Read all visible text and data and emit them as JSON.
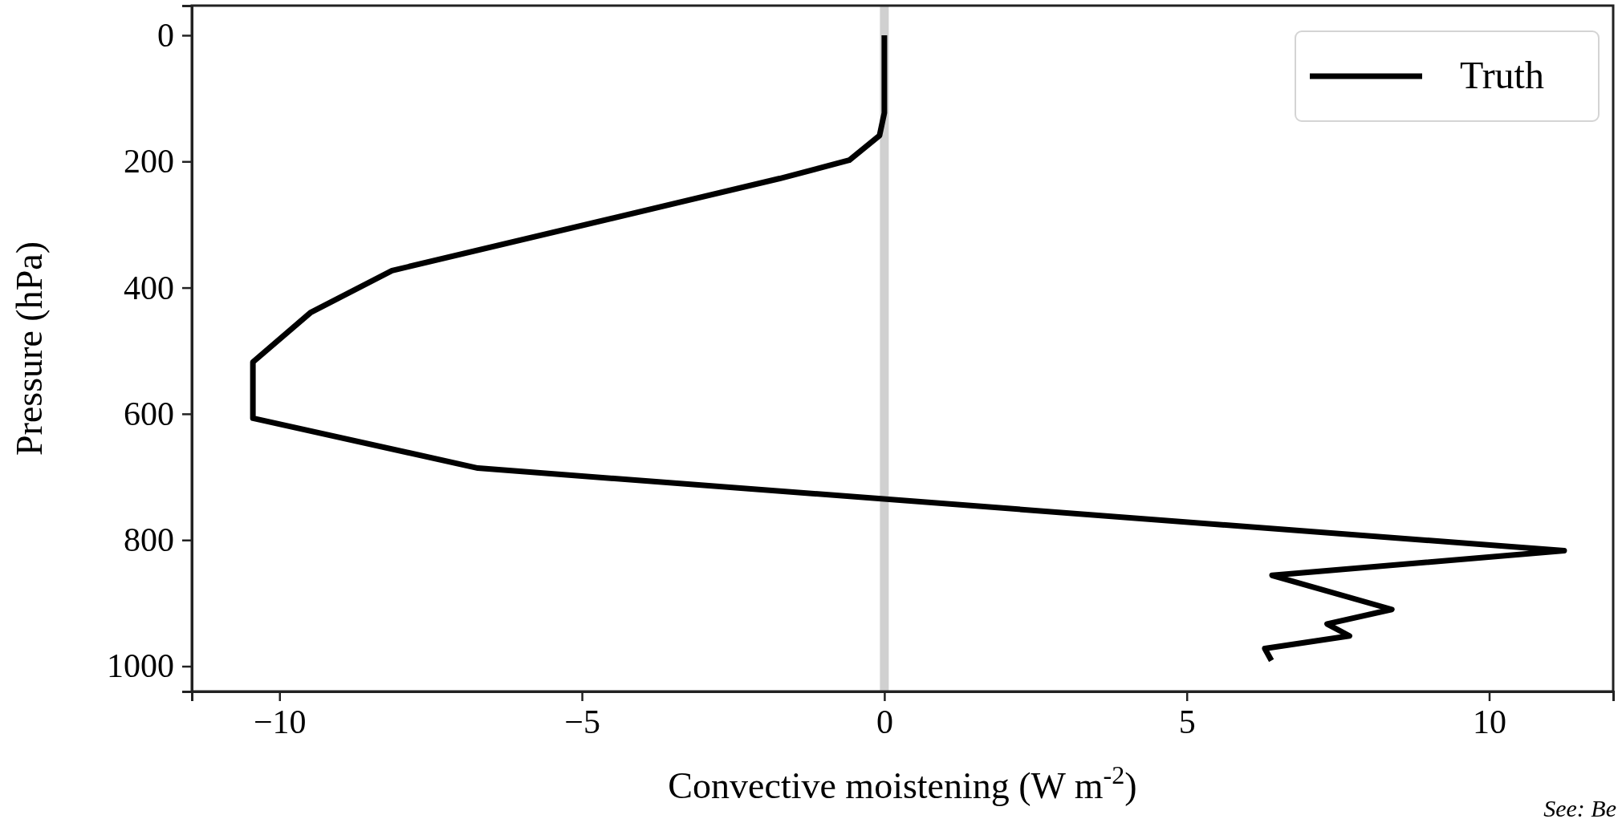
{
  "chart_data": {
    "type": "line",
    "xlabel": "Convective moistening (W m$^{-2}$)",
    "ylabel": "Pressure (hPa)",
    "series": [
      {
        "name": "Truth",
        "color": "#000000",
        "x": [
          0,
          0,
          -0.08,
          -0.58,
          -1.73,
          -8.14,
          -9.48,
          -10.44,
          -10.44,
          -6.72,
          11.24,
          6.41,
          8.39,
          7.32,
          7.69,
          6.29,
          6.4
        ],
        "values": [
          0,
          123,
          159,
          198,
          227,
          373,
          439,
          518,
          607,
          686,
          817,
          856,
          910,
          933,
          952,
          972,
          991
        ]
      }
    ],
    "xlim": [
      -11.45,
      12.05
    ],
    "xticks": [
      {
        "value": -10,
        "label": "−10"
      },
      {
        "value": -5,
        "label": "−5"
      },
      0,
      5,
      10
    ],
    "ylim": [
      1040,
      -47
    ],
    "yticks": [
      0,
      200,
      400,
      600,
      800,
      1000
    ],
    "ref_lines": [
      {
        "axis": "x",
        "value": 0,
        "color": "#d0d0d0"
      }
    ],
    "legend": "top right",
    "marker": "none",
    "line_style": "solid",
    "grid": false,
    "annotations": [
      "See: Be"
    ]
  }
}
